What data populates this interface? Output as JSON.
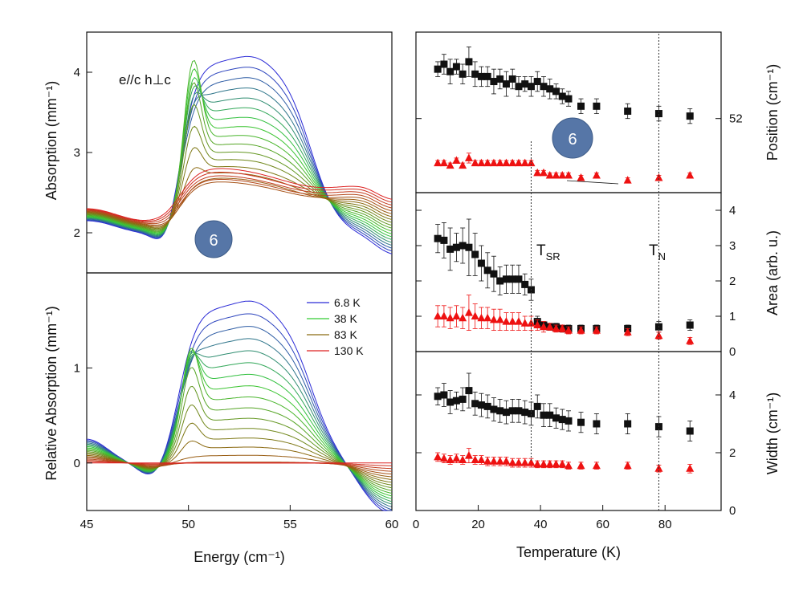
{
  "chart_data": [
    {
      "id": "absorption",
      "type": "line",
      "ylabel": "Absorption (mm⁻¹)",
      "xlim": [
        45,
        60
      ],
      "ylim": [
        1.5,
        4.5
      ],
      "yticks": [
        "2",
        "3",
        "4"
      ],
      "ytick_values": [
        2,
        3,
        4
      ],
      "annotation": "e//c  h⊥c",
      "badge": "6",
      "series_note": "family of spectra from 6.8 K (blue) through 38 K (green), 83 K (olive) to 130 K (red)"
    },
    {
      "id": "relative",
      "type": "line",
      "ylabel": "Relative Absorption (mm⁻¹)",
      "xlabel": "Energy (cm⁻¹)",
      "xlim": [
        45,
        60
      ],
      "ylim": [
        -0.5,
        2.0
      ],
      "xticks": [
        "45",
        "50",
        "55",
        "60"
      ],
      "xtick_values": [
        45,
        50,
        55,
        60
      ],
      "yticks": [
        "0",
        "1"
      ],
      "ytick_values": [
        0,
        1
      ],
      "legend": [
        {
          "label": "6.8 K",
          "color": "#2a2ad6"
        },
        {
          "label": "38 K",
          "color": "#33cc33"
        },
        {
          "label": "83 K",
          "color": "#8a6a10"
        },
        {
          "label": "130 K",
          "color": "#dd2222"
        }
      ]
    },
    {
      "id": "position",
      "type": "scatter",
      "ylabel": "Position (cm⁻¹)",
      "xlim": [
        0,
        98
      ],
      "ylim": [
        51.7,
        52.35
      ],
      "yticks": [
        "52"
      ],
      "ytick_values": [
        52
      ],
      "badge": "6",
      "series": [
        {
          "name": "black squares",
          "marker": "square",
          "color": "#111111",
          "x": [
            7,
            9,
            11,
            13,
            15,
            17,
            19,
            21,
            23,
            25,
            27,
            29,
            31,
            33,
            35,
            37,
            39,
            41,
            43,
            45,
            47,
            49,
            53,
            58,
            68,
            78,
            88
          ],
          "y": [
            52.2,
            52.22,
            52.19,
            52.21,
            52.18,
            52.23,
            52.18,
            52.17,
            52.17,
            52.15,
            52.16,
            52.14,
            52.16,
            52.13,
            52.14,
            52.13,
            52.15,
            52.13,
            52.12,
            52.11,
            52.09,
            52.08,
            52.05,
            52.05,
            52.03,
            52.02,
            52.01
          ],
          "err": [
            0.03,
            0.04,
            0.05,
            0.03,
            0.04,
            0.06,
            0.05,
            0.04,
            0.04,
            0.05,
            0.04,
            0.05,
            0.04,
            0.04,
            0.03,
            0.04,
            0.04,
            0.04,
            0.04,
            0.03,
            0.03,
            0.03,
            0.03,
            0.03,
            0.03,
            0.03,
            0.03
          ]
        },
        {
          "name": "red triangles",
          "marker": "triangle",
          "color": "#ee1111",
          "x": [
            7,
            9,
            11,
            13,
            15,
            17,
            19,
            21,
            23,
            25,
            27,
            29,
            31,
            33,
            35,
            37,
            39,
            41,
            43,
            45,
            47,
            49,
            53,
            58,
            68,
            78,
            88
          ],
          "y": [
            51.82,
            51.82,
            51.81,
            51.83,
            51.81,
            51.84,
            51.82,
            51.82,
            51.82,
            51.82,
            51.82,
            51.82,
            51.82,
            51.82,
            51.82,
            51.82,
            51.78,
            51.78,
            51.77,
            51.77,
            51.77,
            51.77,
            51.76,
            51.77,
            51.75,
            51.76,
            51.77
          ],
          "err": [
            0.01,
            0.01,
            0.01,
            0.01,
            0.01,
            0.02,
            0.01,
            0.01,
            0.01,
            0.01,
            0.01,
            0.01,
            0.01,
            0.01,
            0.01,
            0.01,
            0.01,
            0.01,
            0.01,
            0.01,
            0.01,
            0.01,
            0.01,
            0.01,
            0.01,
            0.01,
            0.01
          ]
        }
      ]
    },
    {
      "id": "area",
      "type": "scatter",
      "ylabel": "Area (arb. u.)",
      "xlim": [
        0,
        98
      ],
      "ylim": [
        0,
        4.5
      ],
      "yticks": [
        "0",
        "1",
        "2",
        "3",
        "4"
      ],
      "ytick_values": [
        0,
        1,
        2,
        3,
        4
      ],
      "annotations": {
        "t_sr": "SR",
        "t_n": "N",
        "t_letter": "T"
      },
      "series": [
        {
          "name": "black squares",
          "marker": "square",
          "color": "#111111",
          "x": [
            7,
            9,
            11,
            13,
            15,
            17,
            19,
            21,
            23,
            25,
            27,
            29,
            31,
            33,
            35,
            37,
            39,
            41,
            43,
            45,
            47,
            49,
            53,
            58,
            68,
            78,
            88
          ],
          "y": [
            3.2,
            3.15,
            2.9,
            2.95,
            3.0,
            2.95,
            2.75,
            2.5,
            2.3,
            2.2,
            2.0,
            2.05,
            2.05,
            2.05,
            1.9,
            1.75,
            0.85,
            0.75,
            0.7,
            0.7,
            0.65,
            0.65,
            0.65,
            0.65,
            0.65,
            0.7,
            0.75
          ],
          "err": [
            0.4,
            0.5,
            0.6,
            0.4,
            0.5,
            0.8,
            0.6,
            0.5,
            0.5,
            0.5,
            0.4,
            0.4,
            0.4,
            0.4,
            0.3,
            0.3,
            0.15,
            0.1,
            0.1,
            0.1,
            0.1,
            0.1,
            0.1,
            0.1,
            0.1,
            0.15,
            0.15
          ]
        },
        {
          "name": "red triangles",
          "marker": "triangle",
          "color": "#ee1111",
          "x": [
            7,
            9,
            11,
            13,
            15,
            17,
            19,
            21,
            23,
            25,
            27,
            29,
            31,
            33,
            35,
            37,
            39,
            41,
            43,
            45,
            47,
            49,
            53,
            58,
            68,
            78,
            88
          ],
          "y": [
            1.0,
            1.0,
            0.95,
            1.0,
            0.95,
            1.1,
            1.0,
            0.95,
            0.95,
            0.9,
            0.9,
            0.85,
            0.85,
            0.85,
            0.8,
            0.8,
            0.75,
            0.7,
            0.7,
            0.65,
            0.65,
            0.6,
            0.6,
            0.6,
            0.55,
            0.45,
            0.3
          ],
          "err": [
            0.3,
            0.3,
            0.3,
            0.3,
            0.3,
            0.5,
            0.35,
            0.3,
            0.3,
            0.3,
            0.3,
            0.25,
            0.25,
            0.25,
            0.2,
            0.2,
            0.15,
            0.15,
            0.1,
            0.1,
            0.1,
            0.1,
            0.1,
            0.1,
            0.1,
            0.1,
            0.1
          ]
        }
      ]
    },
    {
      "id": "width",
      "type": "scatter",
      "ylabel": "Width (cm⁻¹)",
      "xlabel": "Temperature (K)",
      "xlim": [
        0,
        98
      ],
      "ylim": [
        0,
        5.5
      ],
      "xticks": [
        "0",
        "20",
        "40",
        "60",
        "80"
      ],
      "xtick_values": [
        0,
        20,
        40,
        60,
        80
      ],
      "yticks": [
        "0",
        "2",
        "4"
      ],
      "ytick_values": [
        0,
        2,
        4
      ],
      "series": [
        {
          "name": "black squares",
          "marker": "square",
          "color": "#111111",
          "x": [
            7,
            9,
            11,
            13,
            15,
            17,
            19,
            21,
            23,
            25,
            27,
            29,
            31,
            33,
            35,
            37,
            39,
            41,
            43,
            45,
            47,
            49,
            53,
            58,
            68,
            78,
            88
          ],
          "y": [
            3.95,
            4.0,
            3.75,
            3.8,
            3.85,
            4.15,
            3.7,
            3.65,
            3.6,
            3.5,
            3.45,
            3.4,
            3.45,
            3.45,
            3.4,
            3.35,
            3.6,
            3.3,
            3.3,
            3.2,
            3.15,
            3.1,
            3.05,
            3.0,
            3.0,
            2.9,
            2.75
          ],
          "err": [
            0.3,
            0.4,
            0.4,
            0.3,
            0.4,
            0.6,
            0.4,
            0.4,
            0.4,
            0.4,
            0.4,
            0.4,
            0.4,
            0.4,
            0.4,
            0.4,
            0.4,
            0.4,
            0.4,
            0.35,
            0.35,
            0.35,
            0.35,
            0.35,
            0.35,
            0.35,
            0.35
          ]
        },
        {
          "name": "red triangles",
          "marker": "triangle",
          "color": "#ee1111",
          "x": [
            7,
            9,
            11,
            13,
            15,
            17,
            19,
            21,
            23,
            25,
            27,
            29,
            31,
            33,
            35,
            37,
            39,
            41,
            43,
            45,
            47,
            49,
            53,
            58,
            68,
            78,
            88
          ],
          "y": [
            1.85,
            1.8,
            1.75,
            1.8,
            1.75,
            1.9,
            1.75,
            1.75,
            1.7,
            1.7,
            1.7,
            1.7,
            1.65,
            1.65,
            1.65,
            1.65,
            1.6,
            1.6,
            1.6,
            1.6,
            1.6,
            1.55,
            1.55,
            1.55,
            1.55,
            1.45,
            1.45
          ],
          "err": [
            0.15,
            0.15,
            0.15,
            0.15,
            0.15,
            0.25,
            0.15,
            0.15,
            0.15,
            0.15,
            0.15,
            0.15,
            0.15,
            0.15,
            0.15,
            0.15,
            0.12,
            0.12,
            0.12,
            0.12,
            0.12,
            0.12,
            0.12,
            0.12,
            0.12,
            0.12,
            0.15
          ]
        }
      ]
    }
  ],
  "vlines": {
    "t_sr_x": 37,
    "t_n_x": 78
  }
}
